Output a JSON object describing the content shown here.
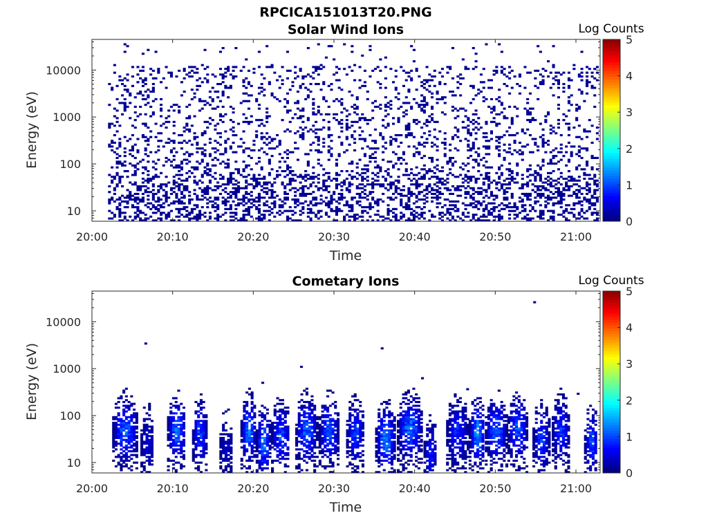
{
  "figure": {
    "title": "RPCICA151013T20.PNG"
  },
  "chart_data": [
    {
      "type": "heatmap",
      "title": "Solar Wind Ions",
      "xlabel": "Time",
      "ylabel": "Energy (eV)",
      "y_scale": "log",
      "xlim": [
        "20:00",
        "21:03"
      ],
      "ylim": [
        6,
        45000
      ],
      "x_tick_labels": [
        "20:00",
        "20:10",
        "20:20",
        "20:30",
        "20:40",
        "20:50",
        "21:00"
      ],
      "y_tick_labels": [
        "10",
        "100",
        "1000",
        "10000"
      ],
      "y_ticks": [
        10,
        100,
        1000,
        10000
      ],
      "colorbar": {
        "label": "Log Counts",
        "range": [
          0,
          5
        ],
        "ticks": [
          "0",
          "1",
          "2",
          "3",
          "4",
          "5"
        ],
        "colormap": "jet"
      },
      "description_of_content": "sparse low counts (~0-0.3 log) scattered across 10 eV - 10 keV, denser bursts below 60 eV",
      "dominant_log_counts": 0.1,
      "energy_range_eV": [
        6,
        35000
      ]
    },
    {
      "type": "heatmap",
      "title": "Cometary Ions",
      "xlabel": "Time",
      "ylabel": "Energy (eV)",
      "y_scale": "log",
      "xlim": [
        "20:00",
        "21:03"
      ],
      "ylim": [
        6,
        45000
      ],
      "x_tick_labels": [
        "20:00",
        "20:10",
        "20:20",
        "20:30",
        "20:40",
        "20:50",
        "21:00"
      ],
      "y_tick_labels": [
        "10",
        "100",
        "1000",
        "10000"
      ],
      "y_ticks": [
        10,
        100,
        1000,
        10000
      ],
      "colorbar": {
        "label": "Log Counts",
        "range": [
          0,
          5
        ],
        "ticks": [
          "0",
          "1",
          "2",
          "3",
          "4",
          "5"
        ],
        "colormap": "jet"
      },
      "bursts_start_minutes": [
        2.5,
        6.0,
        9.3,
        12.4,
        15.8,
        18.4,
        20.3,
        22.2,
        25.2,
        28.1,
        31.5,
        35.1,
        37.8,
        41.1,
        43.9,
        46.7,
        48.7,
        51.5,
        54.6,
        57.0,
        61.0
      ],
      "bursts_end_minutes": [
        5.5,
        7.5,
        11.5,
        14.1,
        17.3,
        20.2,
        22.0,
        24.4,
        27.8,
        30.4,
        33.6,
        37.5,
        40.8,
        42.6,
        46.5,
        48.6,
        51.3,
        53.8,
        56.6,
        59.0,
        62.6
      ],
      "bursts_peak_energy_eV": [
        45,
        25,
        45,
        40,
        20,
        45,
        25,
        35,
        45,
        45,
        40,
        30,
        50,
        15,
        40,
        40,
        45,
        50,
        30,
        45,
        25
      ],
      "bursts_peak_log_counts": [
        1.2,
        0.5,
        1.3,
        1.1,
        0.4,
        1.3,
        1.4,
        1.1,
        1.2,
        1.2,
        1.0,
        1.4,
        1.3,
        0.8,
        0.9,
        1.5,
        1.2,
        1.2,
        1.0,
        1.0,
        1.1
      ]
    }
  ]
}
